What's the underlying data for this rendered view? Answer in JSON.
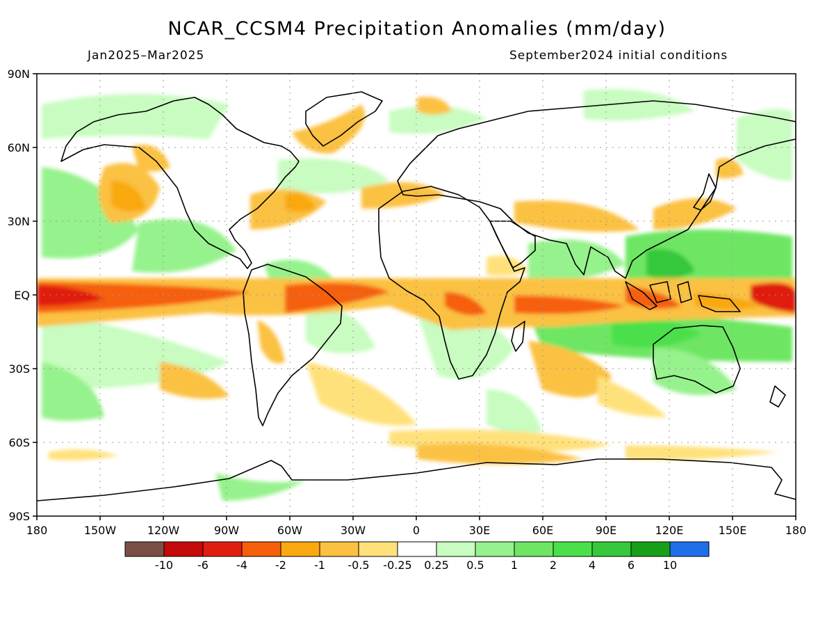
{
  "title": "NCAR_CCSM4 Precipitation Anomalies (mm/day)",
  "subtitle_left": "Jan2025–Mar2025",
  "subtitle_right": "September2024 initial conditions",
  "lat_labels": [
    "90N",
    "60N",
    "30N",
    "EQ",
    "30S",
    "60S",
    "90S"
  ],
  "lon_labels": [
    "180",
    "150W",
    "120W",
    "90W",
    "60W",
    "30W",
    "0",
    "30E",
    "60E",
    "90E",
    "120E",
    "150E",
    "180"
  ],
  "colorbar": {
    "colors": [
      "#7a4f45",
      "#c40a0a",
      "#e01e10",
      "#f55f0a",
      "#f9a80f",
      "#fbc142",
      "#ffe17c",
      "#ffffff",
      "#c8fcc0",
      "#96f28c",
      "#6ee664",
      "#4be04b",
      "#36c83a",
      "#17a017",
      "#1f6fe8"
    ],
    "labels": [
      "-10",
      "-6",
      "-4",
      "-2",
      "-1",
      "-0.5",
      "-0.25",
      "0.25",
      "0.5",
      "1",
      "2",
      "4",
      "6",
      "10"
    ]
  }
}
